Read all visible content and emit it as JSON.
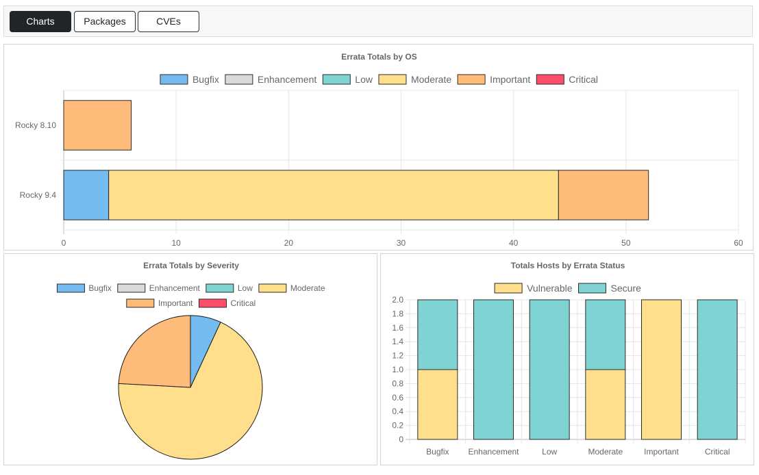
{
  "tabs": [
    {
      "label": "Charts",
      "active": true
    },
    {
      "label": "Packages",
      "active": false
    },
    {
      "label": "CVEs",
      "active": false
    }
  ],
  "colors": {
    "Bugfix": "#74bbef",
    "Enhancement": "#d9dadc",
    "Low": "#7fd3d2",
    "Moderate": "#ffde8c",
    "Important": "#ffbb7a",
    "Critical": "#ff4d6a",
    "Vulnerable": "#ffde8c",
    "Secure": "#7fd3d2"
  },
  "chart_data": [
    {
      "id": "os",
      "type": "bar",
      "orientation": "horizontal",
      "stacked": true,
      "title": "Errata Totals by OS",
      "legend": [
        "Bugfix",
        "Enhancement",
        "Low",
        "Moderate",
        "Important",
        "Critical"
      ],
      "categories": [
        "Rocky 8.10",
        "Rocky 9.4"
      ],
      "series": [
        {
          "name": "Bugfix",
          "values": [
            0,
            4
          ]
        },
        {
          "name": "Enhancement",
          "values": [
            0,
            0
          ]
        },
        {
          "name": "Low",
          "values": [
            0,
            0
          ]
        },
        {
          "name": "Moderate",
          "values": [
            0,
            40
          ]
        },
        {
          "name": "Important",
          "values": [
            6,
            8
          ]
        },
        {
          "name": "Critical",
          "values": [
            0,
            0
          ]
        }
      ],
      "xlim": [
        0,
        60
      ],
      "xticks": [
        "0",
        "10",
        "20",
        "30",
        "40",
        "50",
        "60"
      ],
      "grid": true
    },
    {
      "id": "severity",
      "type": "pie",
      "title": "Errata Totals by Severity",
      "legend": [
        "Bugfix",
        "Enhancement",
        "Low",
        "Moderate",
        "Important",
        "Critical"
      ],
      "slices": [
        {
          "label": "Bugfix",
          "value": 4
        },
        {
          "label": "Enhancement",
          "value": 0
        },
        {
          "label": "Low",
          "value": 0
        },
        {
          "label": "Moderate",
          "value": 40
        },
        {
          "label": "Important",
          "value": 14
        },
        {
          "label": "Critical",
          "value": 0
        }
      ]
    },
    {
      "id": "hosts",
      "type": "bar",
      "orientation": "vertical",
      "stacked": true,
      "title": "Totals Hosts by Errata Status",
      "legend": [
        "Vulnerable",
        "Secure"
      ],
      "categories": [
        "Bugfix",
        "Enhancement",
        "Low",
        "Moderate",
        "Important",
        "Critical"
      ],
      "series": [
        {
          "name": "Vulnerable",
          "values": [
            1,
            0,
            0,
            1,
            2,
            0
          ]
        },
        {
          "name": "Secure",
          "values": [
            1,
            2,
            2,
            1,
            0,
            2
          ]
        }
      ],
      "ylim": [
        0,
        2
      ],
      "yticks": [
        "0",
        "0.2",
        "0.4",
        "0.6",
        "0.8",
        "1.0",
        "1.2",
        "1.4",
        "1.6",
        "1.8",
        "2.0"
      ],
      "grid": true
    }
  ]
}
